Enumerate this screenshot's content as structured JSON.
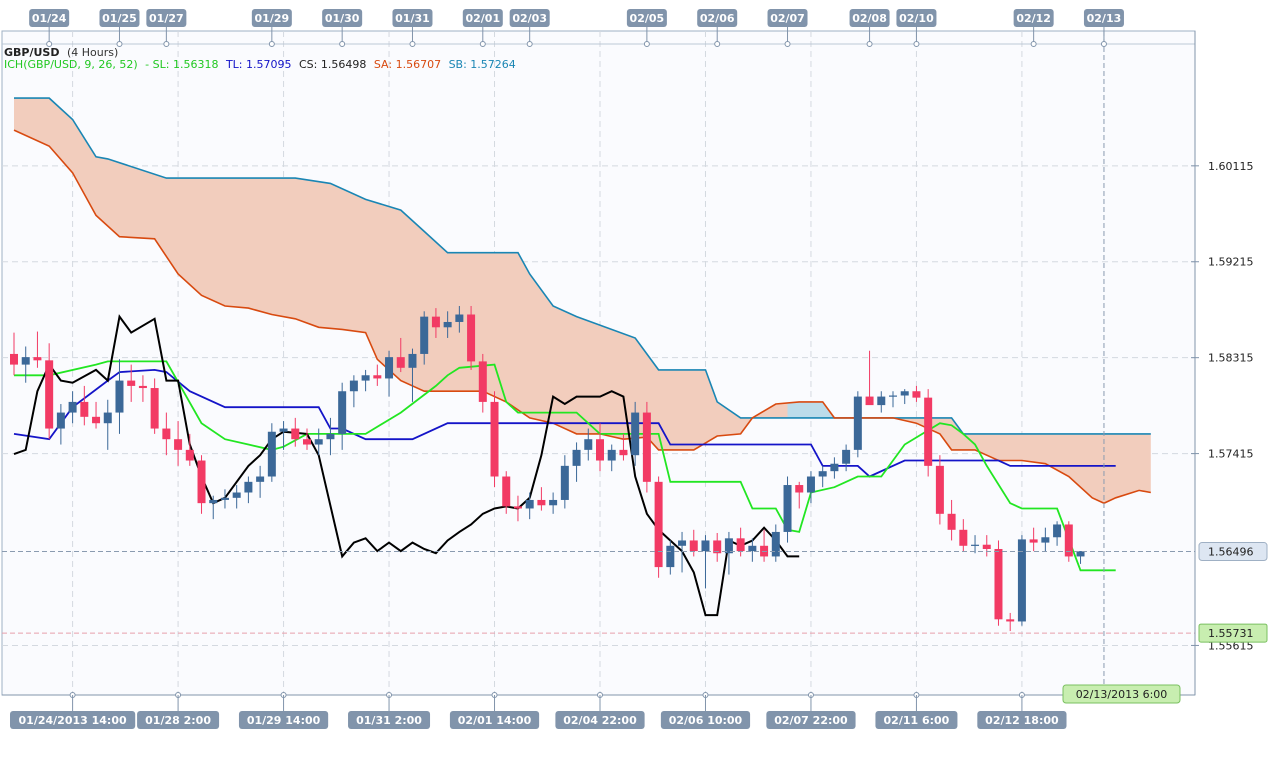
{
  "chart_data": {
    "type": "candlestick",
    "symbol": "GBP/USD",
    "timeframe": "(4 Hours)",
    "indicator": {
      "label": "ICH(GBP/USD, 9, 26, 52)",
      "sl": "- SL: 1.56318",
      "tl": "TL: 1.57095",
      "cs": "CS: 1.56498",
      "sa": "SA: 1.56707",
      "sb": "SB: 1.57264"
    },
    "colors": {
      "up": "#3b6898",
      "down": "#f23a64",
      "tenkan": "#1414c8",
      "kijun": "#22e622",
      "chikou": "#000000",
      "span_a": "#d84a10",
      "span_b": "#1a86b4",
      "cloud_bear": "#f2cdbd",
      "cloud_bull": "#bcdcea",
      "axis_tag": "#8194ab",
      "last_price_bg": "#dde6f2",
      "kijun_label_bg": "#c8eeb0"
    },
    "top_dates": [
      {
        "i": 3,
        "label": "01/24"
      },
      {
        "i": 9,
        "label": "01/25"
      },
      {
        "i": 13,
        "label": "01/27"
      },
      {
        "i": 22,
        "label": "01/29"
      },
      {
        "i": 28,
        "label": "01/30"
      },
      {
        "i": 34,
        "label": "01/31"
      },
      {
        "i": 40,
        "label": "02/01"
      },
      {
        "i": 44,
        "label": "02/03"
      },
      {
        "i": 54,
        "label": "02/05"
      },
      {
        "i": 60,
        "label": "02/06"
      },
      {
        "i": 66,
        "label": "02/07"
      },
      {
        "i": 73,
        "label": "02/08"
      },
      {
        "i": 77,
        "label": "02/10"
      },
      {
        "i": 87,
        "label": "02/12"
      },
      {
        "i": 93,
        "label": "02/13"
      }
    ],
    "bottom_dates": [
      {
        "i": 5,
        "label": "01/24/2013 14:00"
      },
      {
        "i": 14,
        "label": "01/28 2:00"
      },
      {
        "i": 23,
        "label": "01/29 14:00"
      },
      {
        "i": 32,
        "label": "01/31 2:00"
      },
      {
        "i": 41,
        "label": "02/01 14:00"
      },
      {
        "i": 50,
        "label": "02/04 22:00"
      },
      {
        "i": 59,
        "label": "02/06 10:00"
      },
      {
        "i": 68,
        "label": "02/07 22:00"
      },
      {
        "i": 77,
        "label": "02/11 6:00"
      },
      {
        "i": 86,
        "label": "02/12 18:00"
      }
    ],
    "cursor_label": "02/13/2013 6:00",
    "cursor_i": 93,
    "price_ticks": [
      "1.60115",
      "1.59215",
      "1.58315",
      "1.57415",
      "1.55615"
    ],
    "last_price": "1.56496",
    "kijun_label": "1.55731",
    "ylim": [
      1.5515,
      1.6138
    ],
    "candles": [
      [
        1.5835,
        1.5855,
        1.5815,
        1.5825
      ],
      [
        1.5825,
        1.5842,
        1.5808,
        1.5832
      ],
      [
        1.5832,
        1.5856,
        1.5822,
        1.5829
      ],
      [
        1.5829,
        1.5845,
        1.5755,
        1.5765
      ],
      [
        1.5765,
        1.5788,
        1.575,
        1.578
      ],
      [
        1.578,
        1.58,
        1.577,
        1.579
      ],
      [
        1.579,
        1.5805,
        1.5768,
        1.5776
      ],
      [
        1.5776,
        1.579,
        1.5765,
        1.577
      ],
      [
        1.577,
        1.5792,
        1.5745,
        1.578
      ],
      [
        1.578,
        1.583,
        1.576,
        1.581
      ],
      [
        1.581,
        1.5825,
        1.579,
        1.5805
      ],
      [
        1.5805,
        1.5815,
        1.579,
        1.5803
      ],
      [
        1.5803,
        1.5812,
        1.576,
        1.5765
      ],
      [
        1.5765,
        1.578,
        1.574,
        1.5755
      ],
      [
        1.5755,
        1.5772,
        1.573,
        1.5745
      ],
      [
        1.5745,
        1.576,
        1.573,
        1.5735
      ],
      [
        1.5735,
        1.574,
        1.5685,
        1.5695
      ],
      [
        1.5695,
        1.5702,
        1.568,
        1.5698
      ],
      [
        1.5698,
        1.5708,
        1.569,
        1.57
      ],
      [
        1.57,
        1.5712,
        1.569,
        1.5705
      ],
      [
        1.5705,
        1.572,
        1.5695,
        1.5715
      ],
      [
        1.5715,
        1.573,
        1.57,
        1.572
      ],
      [
        1.572,
        1.577,
        1.5715,
        1.5762
      ],
      [
        1.5762,
        1.5772,
        1.5745,
        1.5765
      ],
      [
        1.5765,
        1.5775,
        1.5748,
        1.5755
      ],
      [
        1.5755,
        1.5765,
        1.5745,
        1.575
      ],
      [
        1.575,
        1.5765,
        1.574,
        1.5755
      ],
      [
        1.5755,
        1.5775,
        1.574,
        1.576
      ],
      [
        1.576,
        1.5808,
        1.5745,
        1.58
      ],
      [
        1.58,
        1.5815,
        1.5785,
        1.581
      ],
      [
        1.581,
        1.582,
        1.58,
        1.5815
      ],
      [
        1.5815,
        1.5825,
        1.5805,
        1.5812
      ],
      [
        1.5812,
        1.5838,
        1.5795,
        1.5832
      ],
      [
        1.5832,
        1.585,
        1.5818,
        1.5822
      ],
      [
        1.5822,
        1.584,
        1.579,
        1.5835
      ],
      [
        1.5835,
        1.5875,
        1.5825,
        1.587
      ],
      [
        1.587,
        1.5878,
        1.585,
        1.586
      ],
      [
        1.586,
        1.5875,
        1.585,
        1.5865
      ],
      [
        1.5865,
        1.588,
        1.5855,
        1.5872
      ],
      [
        1.5872,
        1.588,
        1.582,
        1.5828
      ],
      [
        1.5828,
        1.5835,
        1.578,
        1.579
      ],
      [
        1.579,
        1.58,
        1.571,
        1.572
      ],
      [
        1.572,
        1.5725,
        1.5685,
        1.5692
      ],
      [
        1.5692,
        1.5702,
        1.5678,
        1.569
      ],
      [
        1.569,
        1.5705,
        1.568,
        1.5698
      ],
      [
        1.5698,
        1.571,
        1.5688,
        1.5693
      ],
      [
        1.5693,
        1.5705,
        1.5685,
        1.5698
      ],
      [
        1.5698,
        1.574,
        1.569,
        1.573
      ],
      [
        1.573,
        1.5752,
        1.5715,
        1.5745
      ],
      [
        1.5745,
        1.5765,
        1.5735,
        1.5755
      ],
      [
        1.5755,
        1.577,
        1.5725,
        1.5735
      ],
      [
        1.5735,
        1.575,
        1.5725,
        1.5745
      ],
      [
        1.5745,
        1.576,
        1.5735,
        1.574
      ],
      [
        1.574,
        1.579,
        1.573,
        1.578
      ],
      [
        1.578,
        1.579,
        1.5705,
        1.5715
      ],
      [
        1.5715,
        1.572,
        1.5625,
        1.5635
      ],
      [
        1.5635,
        1.566,
        1.5628,
        1.5655
      ],
      [
        1.5655,
        1.5668,
        1.563,
        1.566
      ],
      [
        1.566,
        1.567,
        1.5645,
        1.565
      ],
      [
        1.565,
        1.5665,
        1.5615,
        1.566
      ],
      [
        1.566,
        1.5667,
        1.564,
        1.5648
      ],
      [
        1.5648,
        1.5668,
        1.5628,
        1.5662
      ],
      [
        1.5662,
        1.5672,
        1.5645,
        1.565
      ],
      [
        1.565,
        1.5662,
        1.564,
        1.5655
      ],
      [
        1.5655,
        1.567,
        1.564,
        1.5645
      ],
      [
        1.5645,
        1.5675,
        1.564,
        1.5668
      ],
      [
        1.5668,
        1.572,
        1.5658,
        1.5712
      ],
      [
        1.5712,
        1.5715,
        1.569,
        1.5705
      ],
      [
        1.5705,
        1.5725,
        1.5695,
        1.572
      ],
      [
        1.572,
        1.573,
        1.571,
        1.5725
      ],
      [
        1.5725,
        1.5738,
        1.5718,
        1.5732
      ],
      [
        1.5732,
        1.575,
        1.5725,
        1.5745
      ],
      [
        1.5745,
        1.58,
        1.5738,
        1.5795
      ],
      [
        1.5795,
        1.5838,
        1.579,
        1.5787
      ],
      [
        1.5787,
        1.58,
        1.578,
        1.5795
      ],
      [
        1.5795,
        1.58,
        1.5785,
        1.5796
      ],
      [
        1.5796,
        1.5802,
        1.5788,
        1.58
      ],
      [
        1.58,
        1.5805,
        1.579,
        1.5794
      ],
      [
        1.5794,
        1.5802,
        1.572,
        1.573
      ],
      [
        1.573,
        1.574,
        1.5675,
        1.5685
      ],
      [
        1.5685,
        1.5698,
        1.566,
        1.567
      ],
      [
        1.567,
        1.568,
        1.565,
        1.5655
      ],
      [
        1.5655,
        1.5665,
        1.5648,
        1.5656
      ],
      [
        1.5656,
        1.5665,
        1.5645,
        1.5652
      ],
      [
        1.5652,
        1.566,
        1.558,
        1.5586
      ],
      [
        1.5586,
        1.5592,
        1.5575,
        1.5584
      ],
      [
        1.5584,
        1.5665,
        1.558,
        1.5661
      ],
      [
        1.5661,
        1.5672,
        1.565,
        1.5658
      ],
      [
        1.5658,
        1.5672,
        1.565,
        1.5663
      ],
      [
        1.5663,
        1.5678,
        1.5655,
        1.5675
      ],
      [
        1.5675,
        1.5678,
        1.564,
        1.5645
      ],
      [
        1.5645,
        1.565,
        1.5638,
        1.565
      ]
    ],
    "tenkan": [
      [
        0,
        1.576
      ],
      [
        3,
        1.5755
      ],
      [
        5,
        1.5785
      ],
      [
        8,
        1.581
      ],
      [
        9,
        1.5818
      ],
      [
        12,
        1.582
      ],
      [
        13,
        1.5818
      ],
      [
        15,
        1.58
      ],
      [
        18,
        1.5785
      ],
      [
        26,
        1.5785
      ],
      [
        27,
        1.5765
      ],
      [
        28,
        1.5765
      ],
      [
        30,
        1.5755
      ],
      [
        34,
        1.5755
      ],
      [
        37,
        1.577
      ],
      [
        41,
        1.577
      ],
      [
        55,
        1.577
      ],
      [
        56,
        1.575
      ],
      [
        68,
        1.575
      ],
      [
        69,
        1.573
      ],
      [
        72,
        1.573
      ],
      [
        73,
        1.572
      ],
      [
        76,
        1.5735
      ],
      [
        84,
        1.5735
      ],
      [
        85,
        1.573
      ],
      [
        89,
        1.573
      ],
      [
        94,
        1.573
      ]
    ],
    "kijun": [
      [
        0,
        1.5815
      ],
      [
        3,
        1.5815
      ],
      [
        7,
        1.5825
      ],
      [
        8,
        1.5828
      ],
      [
        13,
        1.5828
      ],
      [
        16,
        1.577
      ],
      [
        18,
        1.5755
      ],
      [
        20,
        1.575
      ],
      [
        22,
        1.5745
      ],
      [
        23,
        1.5748
      ],
      [
        25,
        1.576
      ],
      [
        28,
        1.576
      ],
      [
        30,
        1.576
      ],
      [
        33,
        1.578
      ],
      [
        36,
        1.5805
      ],
      [
        37,
        1.5815
      ],
      [
        38,
        1.5822
      ],
      [
        41,
        1.5825
      ],
      [
        42,
        1.579
      ],
      [
        43,
        1.578
      ],
      [
        46,
        1.578
      ],
      [
        48,
        1.578
      ],
      [
        50,
        1.576
      ],
      [
        55,
        1.576
      ],
      [
        56,
        1.5715
      ],
      [
        62,
        1.5715
      ],
      [
        63,
        1.569
      ],
      [
        65,
        1.569
      ],
      [
        66,
        1.567
      ],
      [
        67,
        1.5668
      ],
      [
        68,
        1.5705
      ],
      [
        70,
        1.571
      ],
      [
        72,
        1.572
      ],
      [
        74,
        1.572
      ],
      [
        76,
        1.575
      ],
      [
        79,
        1.577
      ],
      [
        80,
        1.5768
      ],
      [
        81,
        1.576
      ],
      [
        82,
        1.575
      ],
      [
        83,
        1.573
      ],
      [
        85,
        1.5695
      ],
      [
        86,
        1.569
      ],
      [
        89,
        1.569
      ],
      [
        91,
        1.5632
      ],
      [
        94,
        1.5632
      ]
    ],
    "chikou": [
      [
        0,
        1.5741
      ],
      [
        1,
        1.5745
      ],
      [
        2,
        1.58
      ],
      [
        3,
        1.5825
      ],
      [
        4,
        1.581
      ],
      [
        5,
        1.5808
      ],
      [
        7,
        1.582
      ],
      [
        8,
        1.581
      ],
      [
        9,
        1.587
      ],
      [
        10,
        1.5855
      ],
      [
        12,
        1.5868
      ],
      [
        13,
        1.581
      ],
      [
        14,
        1.581
      ],
      [
        15,
        1.575
      ],
      [
        16,
        1.572
      ],
      [
        17,
        1.5695
      ],
      [
        18,
        1.57
      ],
      [
        20,
        1.573
      ],
      [
        21,
        1.574
      ],
      [
        22,
        1.5755
      ],
      [
        23,
        1.5762
      ],
      [
        25,
        1.576
      ],
      [
        26,
        1.574
      ],
      [
        28,
        1.5645
      ],
      [
        29,
        1.5658
      ],
      [
        30,
        1.5662
      ],
      [
        31,
        1.565
      ],
      [
        32,
        1.5658
      ],
      [
        33,
        1.565
      ],
      [
        34,
        1.5658
      ],
      [
        35,
        1.5652
      ],
      [
        36,
        1.5648
      ],
      [
        37,
        1.566
      ],
      [
        38,
        1.5668
      ],
      [
        39,
        1.5675
      ],
      [
        40,
        1.5685
      ],
      [
        41,
        1.569
      ],
      [
        42,
        1.5692
      ],
      [
        43,
        1.569
      ],
      [
        44,
        1.57
      ],
      [
        45,
        1.574
      ],
      [
        46,
        1.5795
      ],
      [
        47,
        1.5788
      ],
      [
        48,
        1.5795
      ],
      [
        50,
        1.5795
      ],
      [
        51,
        1.58
      ],
      [
        52,
        1.5795
      ],
      [
        53,
        1.572
      ],
      [
        54,
        1.5685
      ],
      [
        55,
        1.567
      ],
      [
        56,
        1.566
      ],
      [
        57,
        1.565
      ],
      [
        58,
        1.563
      ],
      [
        59,
        1.559
      ],
      [
        60,
        1.559
      ],
      [
        61,
        1.566
      ],
      [
        62,
        1.5655
      ],
      [
        63,
        1.566
      ],
      [
        64,
        1.5672
      ],
      [
        65,
        1.566
      ],
      [
        66,
        1.5645
      ],
      [
        67,
        1.5645
      ]
    ],
    "span_a": [
      [
        0,
        1.6045
      ],
      [
        3,
        1.603
      ],
      [
        5,
        1.6005
      ],
      [
        7,
        1.5965
      ],
      [
        9,
        1.5945
      ],
      [
        12,
        1.5943
      ],
      [
        14,
        1.591
      ],
      [
        16,
        1.589
      ],
      [
        18,
        1.588
      ],
      [
        20,
        1.5878
      ],
      [
        22,
        1.5872
      ],
      [
        24,
        1.5868
      ],
      [
        26,
        1.586
      ],
      [
        28,
        1.5858
      ],
      [
        30,
        1.5855
      ],
      [
        31,
        1.583
      ],
      [
        33,
        1.581
      ],
      [
        35,
        1.58
      ],
      [
        37,
        1.58
      ],
      [
        40,
        1.58
      ],
      [
        42,
        1.579
      ],
      [
        44,
        1.5775
      ],
      [
        46,
        1.577
      ],
      [
        48,
        1.576
      ],
      [
        50,
        1.576
      ],
      [
        52,
        1.5755
      ],
      [
        54,
        1.5757
      ],
      [
        55,
        1.5745
      ],
      [
        58,
        1.5745
      ],
      [
        60,
        1.5758
      ],
      [
        62,
        1.576
      ],
      [
        63,
        1.5775
      ],
      [
        65,
        1.5788
      ],
      [
        67,
        1.579
      ],
      [
        69,
        1.579
      ],
      [
        70,
        1.5775
      ],
      [
        73,
        1.5775
      ],
      [
        75,
        1.5775
      ],
      [
        77,
        1.577
      ],
      [
        79,
        1.576
      ],
      [
        80,
        1.5745
      ],
      [
        82,
        1.5745
      ],
      [
        84,
        1.5735
      ],
      [
        86,
        1.5735
      ],
      [
        88,
        1.5732
      ],
      [
        90,
        1.572
      ],
      [
        92,
        1.57
      ],
      [
        93,
        1.5695
      ],
      [
        94,
        1.57
      ],
      [
        96,
        1.5707
      ],
      [
        97,
        1.5705
      ]
    ],
    "span_b": [
      [
        0,
        1.6075
      ],
      [
        3,
        1.6075
      ],
      [
        5,
        1.6055
      ],
      [
        7,
        1.602
      ],
      [
        8,
        1.6018
      ],
      [
        13,
        1.6
      ],
      [
        15,
        1.6
      ],
      [
        24,
        1.6
      ],
      [
        27,
        1.5995
      ],
      [
        30,
        1.598
      ],
      [
        33,
        1.597
      ],
      [
        35,
        1.595
      ],
      [
        37,
        1.593
      ],
      [
        43,
        1.593
      ],
      [
        44,
        1.591
      ],
      [
        46,
        1.588
      ],
      [
        48,
        1.587
      ],
      [
        53,
        1.585
      ],
      [
        55,
        1.582
      ],
      [
        59,
        1.582
      ],
      [
        60,
        1.579
      ],
      [
        62,
        1.5775
      ],
      [
        73,
        1.5775
      ],
      [
        80,
        1.5775
      ],
      [
        81,
        1.576
      ],
      [
        97,
        1.576
      ]
    ],
    "cloud_bull_range": [
      66,
      71
    ]
  }
}
